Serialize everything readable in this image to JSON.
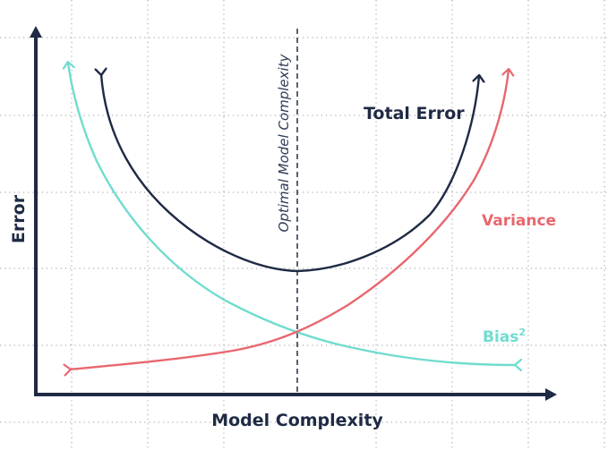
{
  "diagram": {
    "x_axis_label": "Model Complexity",
    "y_axis_label": "Error",
    "optimal_label": "Optimal Model Complexity",
    "curves": {
      "total_error": {
        "label": "Total Error",
        "color": "#1f2a44"
      },
      "variance": {
        "label": "Variance",
        "color": "#e8676f"
      },
      "bias": {
        "label": "Bias",
        "superscript": "2",
        "color": "#6fdcce"
      }
    },
    "axis_color": "#1f2a44",
    "grid_color": "#9a9a9a",
    "optimal_line_color": "#2f3b55"
  }
}
